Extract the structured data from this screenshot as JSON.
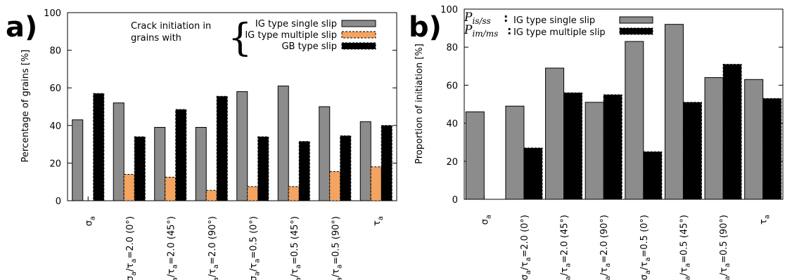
{
  "colors": {
    "grey": "#8c8c8c",
    "orange": "#f4a460",
    "black": "#000000"
  },
  "chart_data": [
    {
      "type": "bar",
      "panel_label": "a)",
      "ylabel": "Percentage of grains [%]",
      "ylim": [
        0,
        100
      ],
      "yticks": [
        "0",
        "20",
        "40",
        "60",
        "80",
        "100"
      ],
      "categories": [
        {
          "base": "σ",
          "sub1": "a",
          "mid": "",
          "sub2": "",
          "tail": ""
        },
        {
          "base": "σ",
          "sub1": "a",
          "mid": "/τ",
          "sub2": "a",
          "tail": "=2.0 (0°)"
        },
        {
          "base": "σ",
          "sub1": "a",
          "mid": "/τ",
          "sub2": "a",
          "tail": "=2.0 (45°)"
        },
        {
          "base": "σ",
          "sub1": "a",
          "mid": "/τ",
          "sub2": "a",
          "tail": "=2.0 (90°)"
        },
        {
          "base": "σ",
          "sub1": "a",
          "mid": "/τ",
          "sub2": "a",
          "tail": "=0.5 (0°)"
        },
        {
          "base": "σ",
          "sub1": "a",
          "mid": "/τ",
          "sub2": "a",
          "tail": "=0.5 (45°)"
        },
        {
          "base": "σ",
          "sub1": "a",
          "mid": "/τ",
          "sub2": "a",
          "tail": "=0.5 (90°)"
        },
        {
          "base": "τ",
          "sub1": "a",
          "mid": "",
          "sub2": "",
          "tail": ""
        }
      ],
      "legend_title_line1": "Crack initiation in",
      "legend_title_line2": "grains with",
      "series": [
        {
          "name": "IG type single slip",
          "color": "grey",
          "values": [
            43,
            52,
            39,
            39,
            58,
            61,
            50,
            42
          ]
        },
        {
          "name": "IG type multiple slip",
          "color": "orange",
          "values": [
            0,
            14,
            12.5,
            5.5,
            7.5,
            7.5,
            15.5,
            18
          ]
        },
        {
          "name": "GB type slip",
          "color": "black",
          "values": [
            57,
            34,
            48.5,
            55.5,
            34,
            31.5,
            34.5,
            40
          ]
        }
      ]
    },
    {
      "type": "bar",
      "panel_label": "b)",
      "ylabel": "Proportion of initiation [%]",
      "ylim": [
        0,
        100
      ],
      "yticks": [
        "0",
        "20",
        "40",
        "60",
        "80",
        "100"
      ],
      "categories": [
        {
          "base": "σ",
          "sub1": "a",
          "mid": "",
          "sub2": "",
          "tail": ""
        },
        {
          "base": "σ",
          "sub1": "a",
          "mid": "/τ",
          "sub2": "a",
          "tail": "=2.0 (0°)"
        },
        {
          "base": "σ",
          "sub1": "a",
          "mid": "/τ",
          "sub2": "a",
          "tail": "=2.0 (45°)"
        },
        {
          "base": "σ",
          "sub1": "a",
          "mid": "/τ",
          "sub2": "a",
          "tail": "=2.0 (90°)"
        },
        {
          "base": "σ",
          "sub1": "a",
          "mid": "/τ",
          "sub2": "a",
          "tail": "=0.5 (0°)"
        },
        {
          "base": "σ",
          "sub1": "a",
          "mid": "/τ",
          "sub2": "a",
          "tail": "=0.5 (45°)"
        },
        {
          "base": "σ",
          "sub1": "a",
          "mid": "/τ",
          "sub2": "a",
          "tail": "=0.5 (90°)"
        },
        {
          "base": "τ",
          "sub1": "a",
          "mid": "",
          "sub2": "",
          "tail": ""
        }
      ],
      "legend_math": [
        {
          "P": "P",
          "sub": "is/ss"
        },
        {
          "P": "P",
          "sub": "im/ms"
        }
      ],
      "series": [
        {
          "name": "IG type single slip",
          "color": "grey",
          "values": [
            46,
            49,
            69,
            51,
            83,
            92,
            64,
            63
          ]
        },
        {
          "name": "IG type multiple slip",
          "color": "black",
          "values": [
            0,
            27,
            56,
            55,
            25,
            51,
            71,
            53
          ]
        }
      ]
    }
  ]
}
